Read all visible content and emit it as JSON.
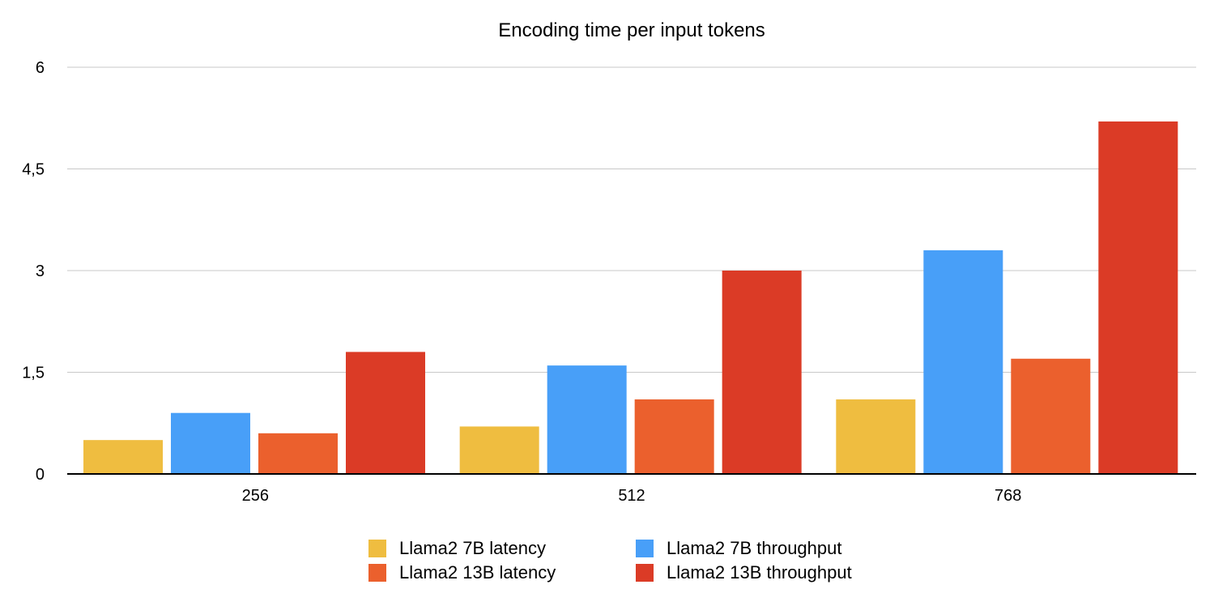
{
  "chart_data": {
    "type": "bar",
    "title": "Encoding time per input tokens",
    "xlabel": "",
    "ylabel": "",
    "categories": [
      "256",
      "512",
      "768"
    ],
    "ylim": [
      0,
      6
    ],
    "yticks": [
      0,
      1.5,
      3,
      4.5,
      6
    ],
    "ytick_labels": [
      "0",
      "1,5",
      "3",
      "4,5",
      "6"
    ],
    "grid": true,
    "legend_position": "bottom",
    "series": [
      {
        "name": "Llama2 7B latency",
        "color": "#EFBD40",
        "values": [
          0.5,
          0.7,
          1.1
        ]
      },
      {
        "name": "Llama2 7B throughput",
        "color": "#489FF8",
        "values": [
          0.9,
          1.6,
          3.3
        ]
      },
      {
        "name": "Llama2 13B latency",
        "color": "#EB602D",
        "values": [
          0.6,
          1.1,
          1.7
        ]
      },
      {
        "name": "Llama2 13B throughput",
        "color": "#DB3B26",
        "values": [
          1.8,
          3.0,
          5.2
        ]
      }
    ]
  }
}
